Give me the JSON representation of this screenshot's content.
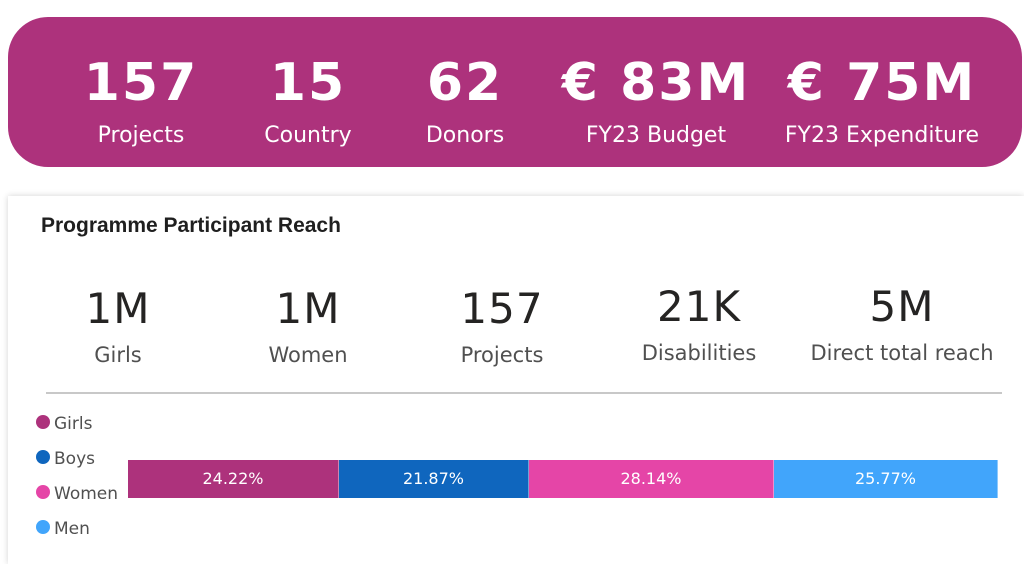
{
  "header_kpis": [
    {
      "value": "157",
      "label": "Projects"
    },
    {
      "value": "15",
      "label": "Country"
    },
    {
      "value": "62",
      "label": "Donors"
    },
    {
      "value": "€ 83M",
      "label": "FY23 Budget"
    },
    {
      "value": "€ 75M",
      "label": "FY23 Expenditure"
    }
  ],
  "reach": {
    "title": "Programme Participant Reach",
    "stats": [
      {
        "value": "1M",
        "label": "Girls"
      },
      {
        "value": "1M",
        "label": "Women"
      },
      {
        "value": "157",
        "label": "Projects"
      },
      {
        "value": "21K",
        "label": "Disabilities"
      },
      {
        "value": "5M",
        "label": "Direct total reach"
      }
    ]
  },
  "chart_data": {
    "type": "bar",
    "orientation": "horizontal-stacked-100",
    "title": "",
    "series": [
      {
        "name": "Girls",
        "value": 24.22,
        "label": "24.22%",
        "color": "#ad327c"
      },
      {
        "name": "Boys",
        "value": 21.87,
        "label": "21.87%",
        "color": "#0f66be"
      },
      {
        "name": "Women",
        "value": 28.14,
        "label": "28.14%",
        "color": "#e545a7"
      },
      {
        "name": "Men",
        "value": 25.77,
        "label": "25.77%",
        "color": "#41a5fb"
      }
    ],
    "legend_position": "left"
  }
}
